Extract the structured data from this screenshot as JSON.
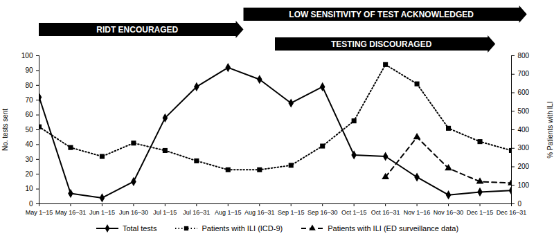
{
  "chart_data": {
    "type": "line",
    "y_label": "No. tests sent",
    "y2_label": "% Patients with ILI",
    "categories": [
      "May 1–15",
      "May 16–31",
      "Jun 1–15",
      "Jun 16–30",
      "Jul 1–15",
      "Jul 16–31",
      "Aug 1–15",
      "Aug 16–31",
      "Sep 1–15",
      "Sep 16–30",
      "Oct 1–15",
      "Oct 16–31",
      "Nov 1–16",
      "Nov 16–30",
      "Dec 1–15",
      "Dec 16–31"
    ],
    "series": [
      {
        "name": "Total tests",
        "color": "#000000",
        "marker": "diamond",
        "line_style": "solid",
        "values": [
          72,
          7,
          4,
          15,
          58,
          79,
          92,
          84,
          68,
          79,
          33,
          32,
          18,
          6,
          8,
          9
        ]
      },
      {
        "name": "Patients with ILI (ICD-9)",
        "color": "#000000",
        "marker": "square",
        "line_style": "dotted",
        "axis": "y2",
        "values": [
          416,
          304,
          256,
          328,
          288,
          232,
          184,
          184,
          208,
          312,
          448,
          752,
          648,
          408,
          336,
          288
        ]
      },
      {
        "name": "Patients with ILI (ED surveillance data)",
        "color": "#000000",
        "marker": "triangle",
        "line_style": "dashed",
        "axis": "y2",
        "values": [
          null,
          null,
          null,
          null,
          null,
          null,
          null,
          null,
          null,
          null,
          null,
          144,
          360,
          192,
          120,
          112
        ]
      }
    ],
    "ylim": [
      0,
      100
    ],
    "yticks": [
      0,
      10,
      20,
      30,
      40,
      50,
      60,
      70,
      80,
      90,
      100
    ],
    "y2lim": [
      0,
      800
    ],
    "y2ticks": [
      0,
      100,
      200,
      300,
      400,
      500,
      600,
      700,
      800
    ],
    "annotations": [
      {
        "text": "RIDT ENCOURAGED",
        "from": "May 1–15",
        "to": "Aug 1–15"
      },
      {
        "text": "LOW SENSITIVITY OF TEST ACKNOWLEDGED",
        "from": "Aug 16–31",
        "to": "Dec 16–31"
      },
      {
        "text": "TESTING DISCOURAGED",
        "from": "Sep 1–15",
        "to": "Dec 1–15"
      }
    ],
    "legend": "bottom",
    "grid": false
  }
}
